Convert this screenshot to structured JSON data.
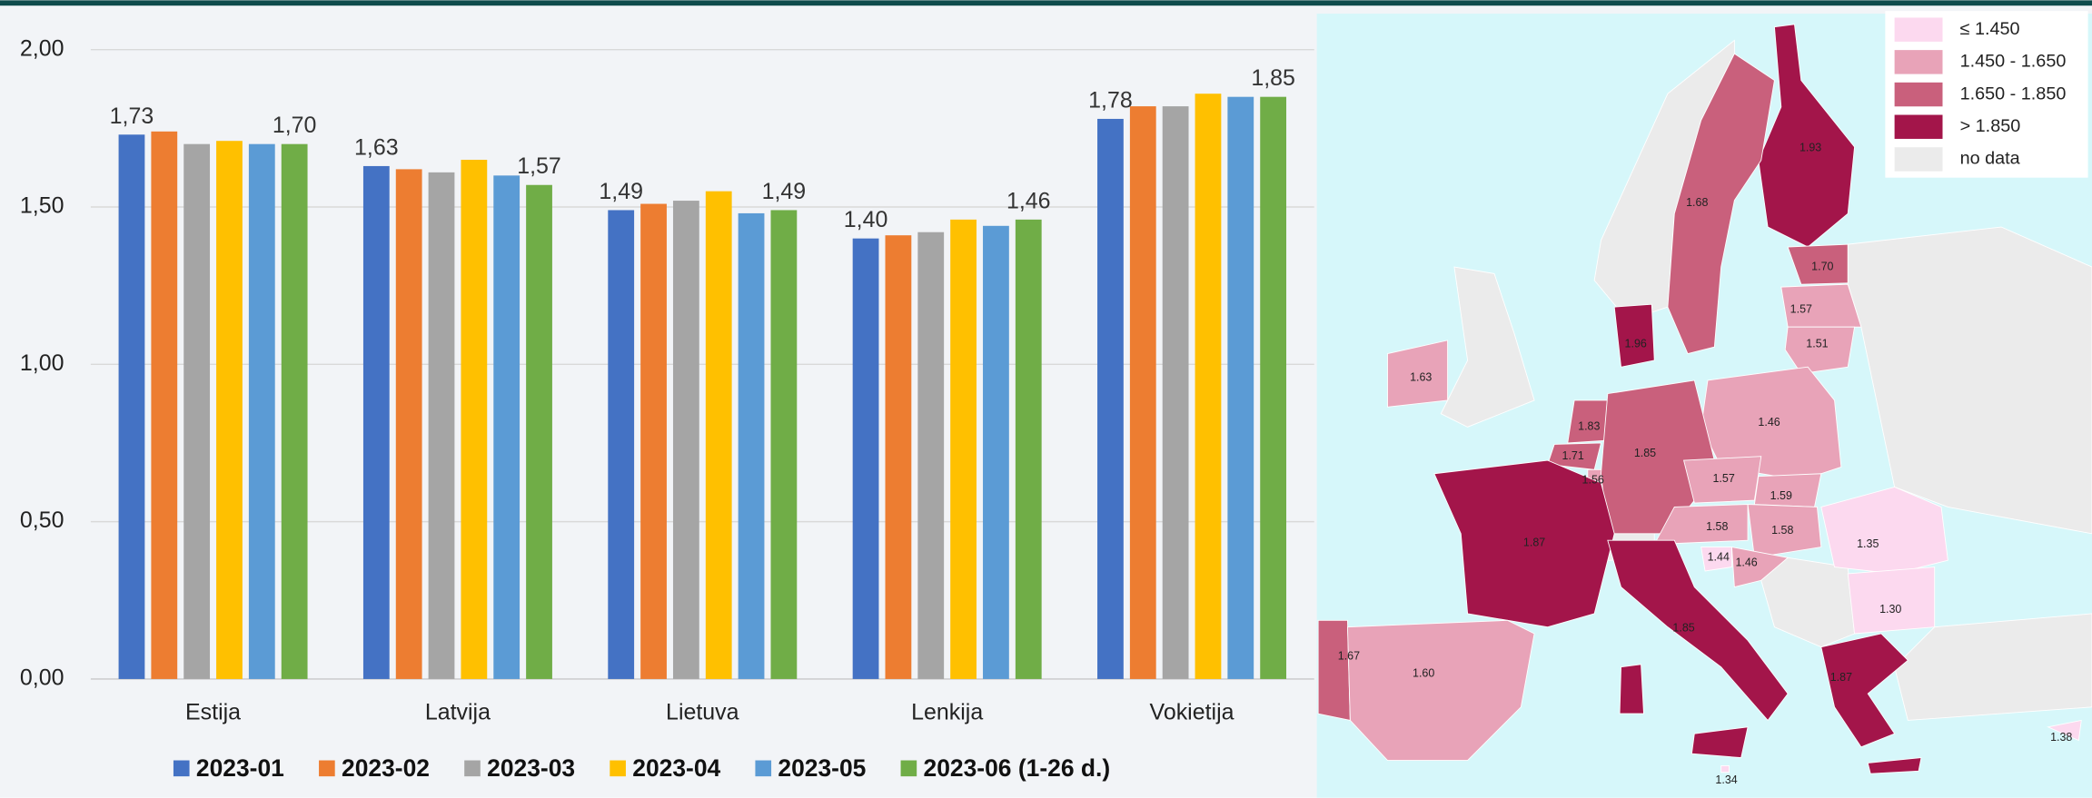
{
  "chart_data": [
    {
      "type": "bar",
      "categories": [
        "Estija",
        "Latvija",
        "Lietuva",
        "Lenkija",
        "Vokietija"
      ],
      "series": [
        {
          "name": "2023-01",
          "color": "#4472c4",
          "values": [
            1.73,
            1.63,
            1.49,
            1.4,
            1.78
          ],
          "value_labels": [
            "1,73",
            "1,63",
            "1,49",
            "1,40",
            "1,78"
          ]
        },
        {
          "name": "2023-02",
          "color": "#ed7d31",
          "values": [
            1.74,
            1.62,
            1.51,
            1.41,
            1.82
          ]
        },
        {
          "name": "2023-03",
          "color": "#a5a5a5",
          "values": [
            1.7,
            1.61,
            1.52,
            1.42,
            1.82
          ]
        },
        {
          "name": "2023-04",
          "color": "#ffc000",
          "values": [
            1.71,
            1.65,
            1.55,
            1.46,
            1.86
          ]
        },
        {
          "name": "2023-05",
          "color": "#5b9bd5",
          "values": [
            1.7,
            1.6,
            1.48,
            1.44,
            1.85
          ]
        },
        {
          "name": "2023-06 (1-26 d.)",
          "color": "#70ad47",
          "values": [
            1.7,
            1.57,
            1.49,
            1.46,
            1.85
          ],
          "value_labels": [
            "1,70",
            "1,57",
            "1,49",
            "1,46",
            "1,85"
          ]
        }
      ],
      "ylim": [
        0,
        2
      ],
      "yticks": [
        {
          "value": 0,
          "label": "0,00"
        },
        {
          "value": 0.5,
          "label": "0,50"
        },
        {
          "value": 1,
          "label": "1,00"
        },
        {
          "value": 1.5,
          "label": "1,50"
        },
        {
          "value": 2,
          "label": "2,00"
        }
      ],
      "grid": true,
      "legend": "bottom"
    },
    {
      "type": "map",
      "legend": [
        {
          "label": "≤ 1.450",
          "color": "#fcd9ef"
        },
        {
          "label": "1.450 - 1.650",
          "color": "#e8a3b8"
        },
        {
          "label": "1.650 - 1.850",
          "color": "#c9607c"
        },
        {
          "label": "> 1.850",
          "color": "#a3154a"
        },
        {
          "label": "no data",
          "color": "#ebebeb"
        }
      ],
      "values": [
        1.93,
        1.68,
        1.7,
        1.57,
        1.51,
        1.96,
        1.63,
        1.46,
        1.83,
        1.71,
        1.56,
        1.85,
        1.57,
        1.59,
        1.87,
        1.58,
        1.58,
        1.35,
        1.44,
        1.46,
        1.3,
        1.85,
        1.67,
        1.6,
        1.87,
        1.34,
        1.38
      ],
      "value_labels": [
        "1.93",
        "1.68",
        "1.70",
        "1.57",
        "1.51",
        "1.96",
        "1.63",
        "1.46",
        "1.83",
        "1.71",
        "1.56",
        "1.85",
        "1.57",
        "1.59",
        "1.87",
        "1.58",
        "1.58",
        "1.35",
        "1.44",
        "1.46",
        "1.30",
        "1.85",
        "1.67",
        "1.60",
        "1.87",
        "1.34",
        "1.38"
      ],
      "colors": [
        "#a3154a",
        "#c9607c",
        "#c9607c",
        "#e8a3b8",
        "#e8a3b8",
        "#a3154a",
        "#e8a3b8",
        "#e8a3b8",
        "#c9607c",
        "#c9607c",
        "#e8a3b8",
        "#c9607c",
        "#e8a3b8",
        "#e8a3b8",
        "#a3154a",
        "#e8a3b8",
        "#e8a3b8",
        "#fcd9ef",
        "#fcd9ef",
        "#e8a3b8",
        "#fcd9ef",
        "#a3154a",
        "#c9607c",
        "#e8a3b8",
        "#a3154a",
        "#fcd9ef",
        "#fcd9ef"
      ]
    }
  ]
}
